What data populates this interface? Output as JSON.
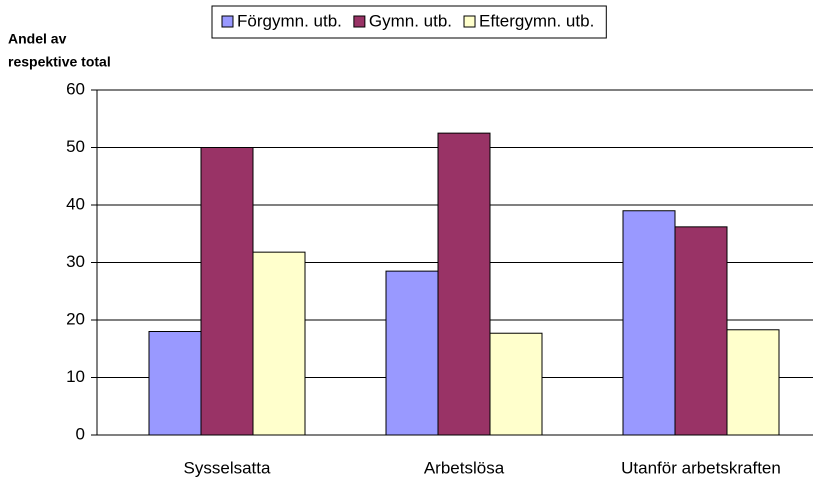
{
  "chart_data": {
    "type": "bar",
    "y_label": [
      "Andel av",
      "respektive total"
    ],
    "categories": [
      "Sysselsatta",
      "Arbetslösa",
      "Utanför arbetskraften"
    ],
    "series": [
      {
        "name": "Förgymn. utb.",
        "color": "#9999ff",
        "values": [
          18,
          28.5,
          39
        ]
      },
      {
        "name": "Gymn. utb.",
        "color": "#993366",
        "values": [
          50,
          52.5,
          36.2
        ]
      },
      {
        "name": "Eftergymn. utb.",
        "color": "#ffffcc",
        "values": [
          31.8,
          17.7,
          18.3
        ]
      }
    ],
    "ylim": [
      0,
      60
    ],
    "yticks": [
      0,
      10,
      20,
      30,
      40,
      50,
      60
    ],
    "grid": true,
    "legend": "top"
  }
}
